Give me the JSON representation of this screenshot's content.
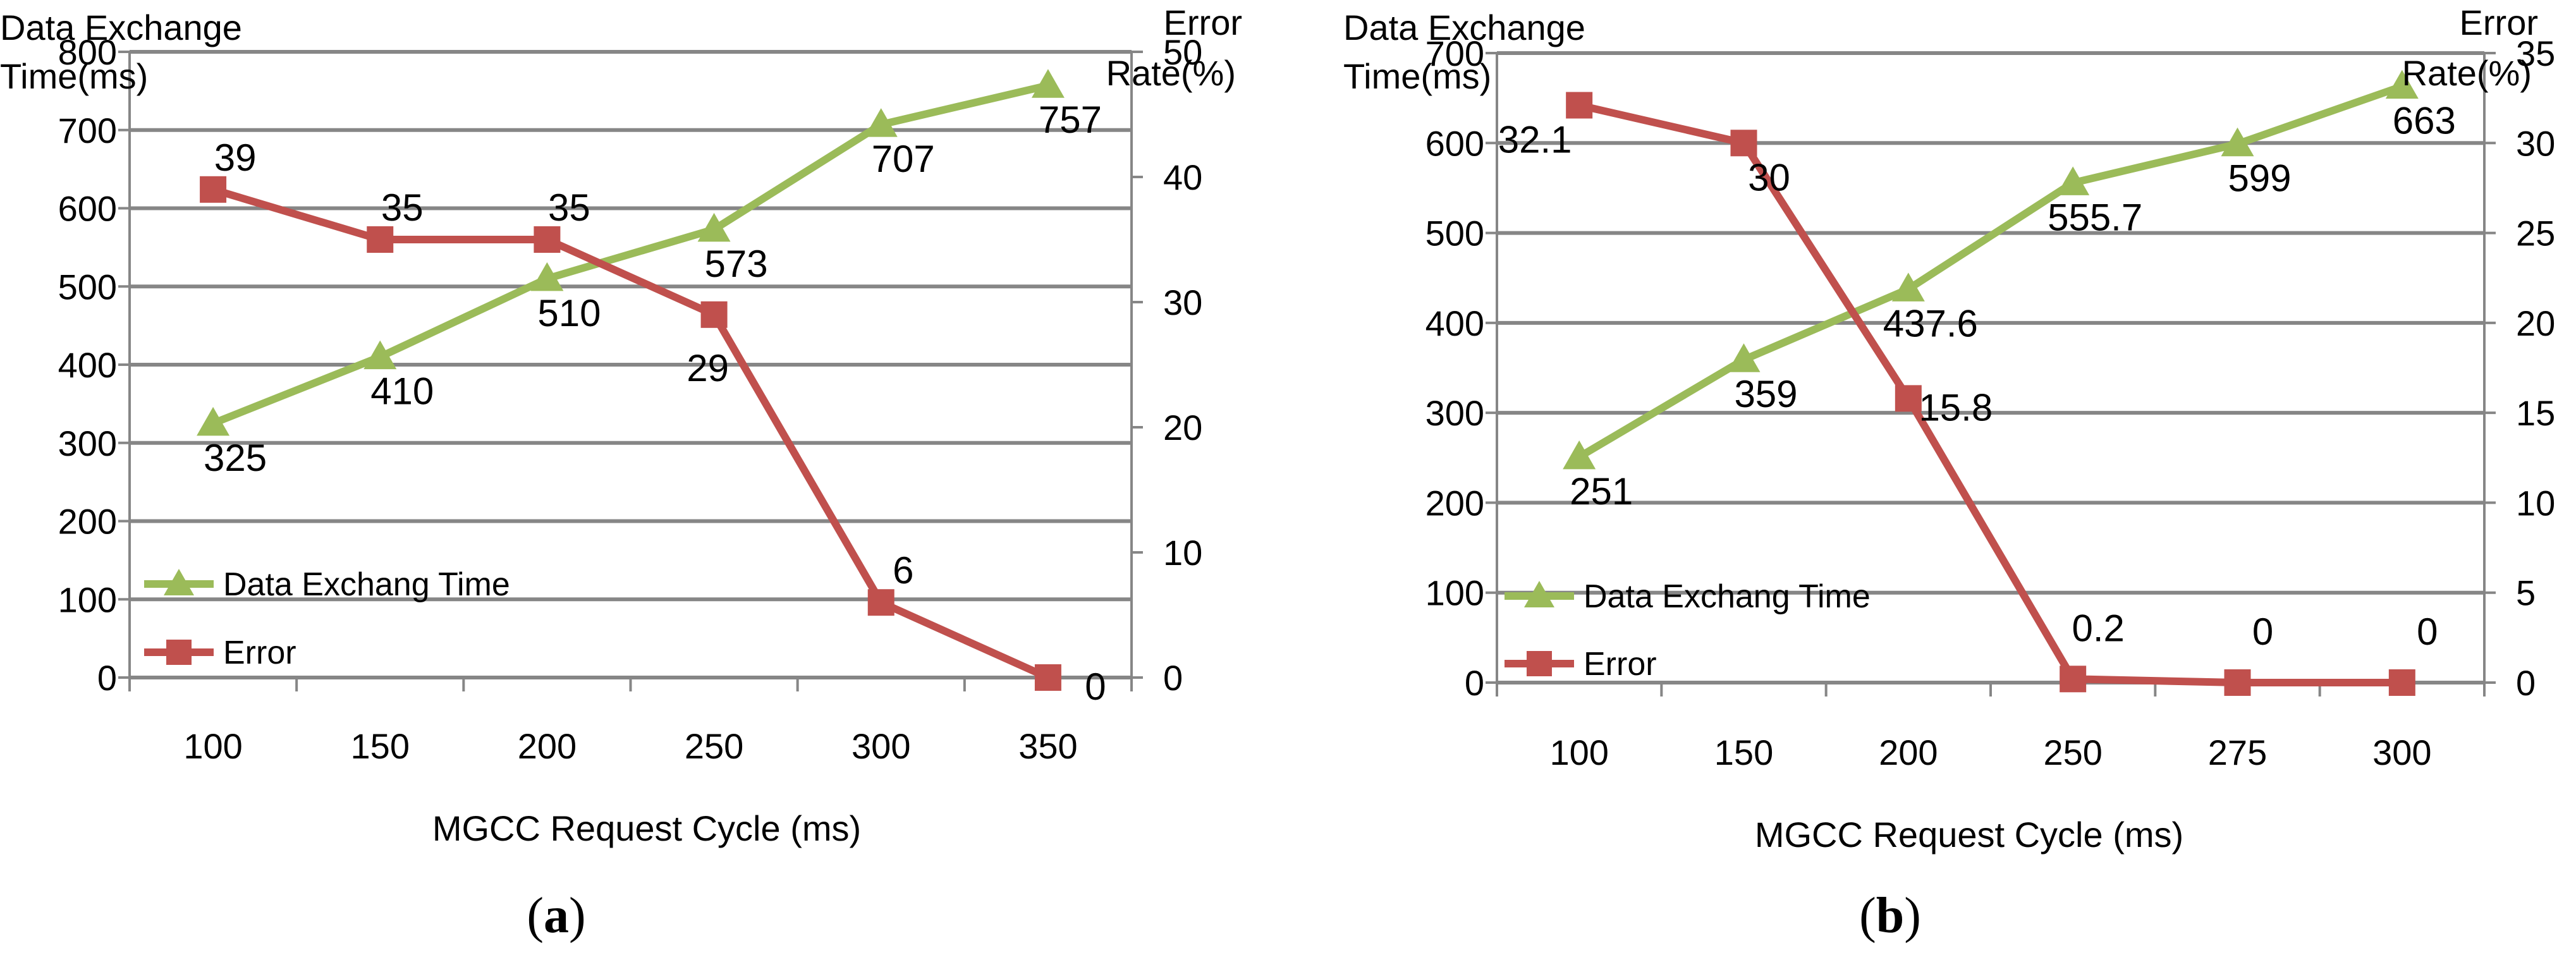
{
  "colors": {
    "time_series": "#9BBB59",
    "error_series": "#C0504D",
    "grid": "#868686",
    "axis": "#868686",
    "text": "#000000"
  },
  "chart_data": [
    {
      "panel_caption": "a",
      "type": "line",
      "dual_axis": true,
      "categories": [
        "100",
        "150",
        "200",
        "250",
        "300",
        "350"
      ],
      "xlabel": "MGCC Request Cycle (ms)",
      "ylabel_left": [
        "Data Exchange",
        "Time(ms)"
      ],
      "ylabel_right": [
        "Error",
        "Rate(%)"
      ],
      "ylim_left": [
        0,
        800
      ],
      "yticks_left": [
        "0",
        "100",
        "200",
        "300",
        "400",
        "500",
        "600",
        "700",
        "800"
      ],
      "ylim_right": [
        0,
        50
      ],
      "yticks_right": [
        "0",
        "10",
        "20",
        "30",
        "40",
        "50"
      ],
      "grid": "horizontal",
      "legend": "bottom-left, inside plot",
      "series": [
        {
          "name": "Data Exchang Time",
          "axis": "left",
          "marker": "triangle",
          "color": "#9BBB59",
          "values": [
            325,
            410,
            510,
            573,
            707,
            757
          ],
          "labels": [
            "325",
            "410",
            "510",
            "573",
            "707",
            "757"
          ]
        },
        {
          "name": "Error",
          "axis": "right",
          "marker": "square",
          "color": "#C0504D",
          "values": [
            39,
            35,
            35,
            29,
            6,
            0
          ],
          "labels": [
            "39",
            "35",
            "35",
            "29",
            "6",
            "0"
          ]
        }
      ]
    },
    {
      "panel_caption": "b",
      "type": "line",
      "dual_axis": true,
      "categories": [
        "100",
        "150",
        "200",
        "250",
        "275",
        "300"
      ],
      "xlabel": "MGCC Request Cycle (ms)",
      "ylabel_left": [
        "Data Exchange",
        "Time(ms)"
      ],
      "ylabel_right": [
        "Error",
        "Rate(%)"
      ],
      "ylim_left": [
        0,
        700
      ],
      "yticks_left": [
        "0",
        "100",
        "200",
        "300",
        "400",
        "500",
        "600",
        "700"
      ],
      "ylim_right": [
        0,
        35
      ],
      "yticks_right": [
        "0",
        "5",
        "10",
        "15",
        "20",
        "25",
        "30",
        "35"
      ],
      "grid": "horizontal",
      "legend": "bottom-left, inside plot",
      "series": [
        {
          "name": "Data Exchang Time",
          "axis": "left",
          "marker": "triangle",
          "color": "#9BBB59",
          "values": [
            251,
            359,
            437.6,
            555.7,
            599,
            663
          ],
          "labels": [
            "251",
            "359",
            "437.6",
            "555.7",
            "599",
            "663"
          ]
        },
        {
          "name": "Error",
          "axis": "right",
          "marker": "square",
          "color": "#C0504D",
          "values": [
            32.1,
            30,
            15.8,
            0.2,
            0,
            0
          ],
          "labels": [
            "32.1",
            "30",
            "15.8",
            "0.2",
            "0",
            "0"
          ]
        }
      ]
    }
  ]
}
